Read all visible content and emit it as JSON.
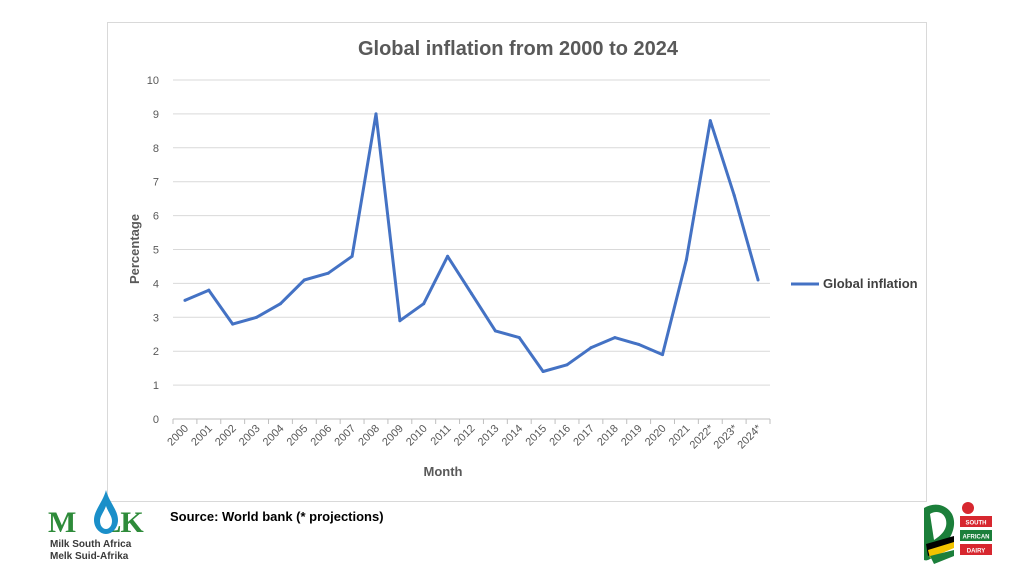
{
  "chart_data": {
    "type": "line",
    "title": "Global inflation from 2000 to 2024",
    "xlabel": "Month",
    "ylabel": "Percentage",
    "ylim": [
      0,
      10
    ],
    "yticks": [
      0,
      1,
      2,
      3,
      4,
      5,
      6,
      7,
      8,
      9,
      10
    ],
    "grid": true,
    "legend": "right",
    "categories": [
      "2000",
      "2001",
      "2002",
      "2003",
      "2004",
      "2005",
      "2006",
      "2007",
      "2008",
      "2009",
      "2010",
      "2011",
      "2012",
      "2013",
      "2014",
      "2015",
      "2016",
      "2017",
      "2018",
      "2019",
      "2020",
      "2021",
      "2022*",
      "2023*",
      "2024*"
    ],
    "series": [
      {
        "name": "Global inflation",
        "color": "#4472c4",
        "values": [
          3.5,
          3.8,
          2.8,
          3.0,
          3.4,
          4.1,
          4.3,
          4.8,
          9.0,
          2.9,
          3.4,
          4.8,
          3.7,
          2.6,
          2.4,
          1.4,
          1.6,
          2.1,
          2.4,
          2.2,
          1.9,
          4.7,
          8.8,
          6.6,
          4.1
        ]
      }
    ]
  },
  "footer": {
    "source": "Source: World bank (* projections)"
  },
  "logos": {
    "milk_brand": "MILK",
    "milk_line1": "Milk South Africa",
    "milk_line2": "Melk Suid-Afrika",
    "milk_color": "#2e8b3a",
    "dairy_line1": "SOUTH",
    "dairy_line2": "AFRICAN",
    "dairy_line3": "DAIRY"
  }
}
